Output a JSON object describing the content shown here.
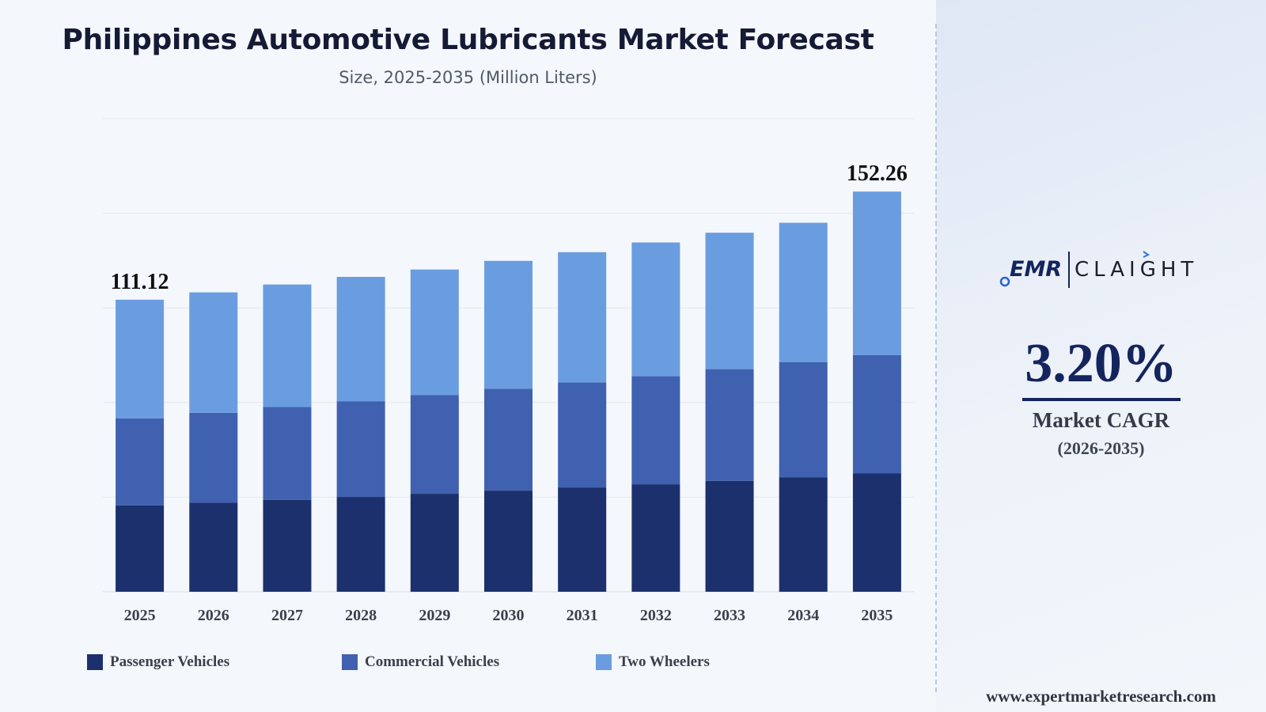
{
  "header": {
    "title": "Philippines Automotive Lubricants Market Forecast",
    "subtitle": "Size, 2025-2035 (Million Liters)"
  },
  "chart_data": {
    "type": "bar",
    "stacked": true,
    "categories": [
      "2025",
      "2026",
      "2027",
      "2028",
      "2029",
      "2030",
      "2031",
      "2032",
      "2033",
      "2034",
      "2035"
    ],
    "series": [
      {
        "name": "Passenger Vehicles",
        "color": "#1c306d",
        "values": [
          32.9,
          33.9,
          35.0,
          36.1,
          37.3,
          38.5,
          39.7,
          40.9,
          42.2,
          43.5,
          45.0
        ]
      },
      {
        "name": "Commercial Vehicles",
        "color": "#4061b0",
        "values": [
          33.1,
          34.2,
          35.3,
          36.4,
          37.5,
          38.7,
          39.9,
          41.1,
          42.5,
          43.9,
          45.0
        ]
      },
      {
        "name": "Two Wheelers",
        "color": "#6a9ddf",
        "values": [
          45.12,
          45.8,
          46.6,
          47.3,
          47.8,
          48.7,
          49.6,
          50.9,
          51.9,
          53.0,
          62.26
        ]
      }
    ],
    "totals_labels": [
      {
        "category": "2025",
        "text": "111.12"
      },
      {
        "category": "2035",
        "text": "152.26"
      }
    ],
    "ylim": [
      0,
      180
    ],
    "grid": true,
    "legend_position": "bottom-left"
  },
  "sidebar": {
    "logo_text": "EMR",
    "logo_partner": "CLAIGHT",
    "cagr_value": "3.20%",
    "cagr_label": "Market CAGR",
    "cagr_period": "(2026-2035)",
    "website": "www.expertmarketresearch.com"
  }
}
